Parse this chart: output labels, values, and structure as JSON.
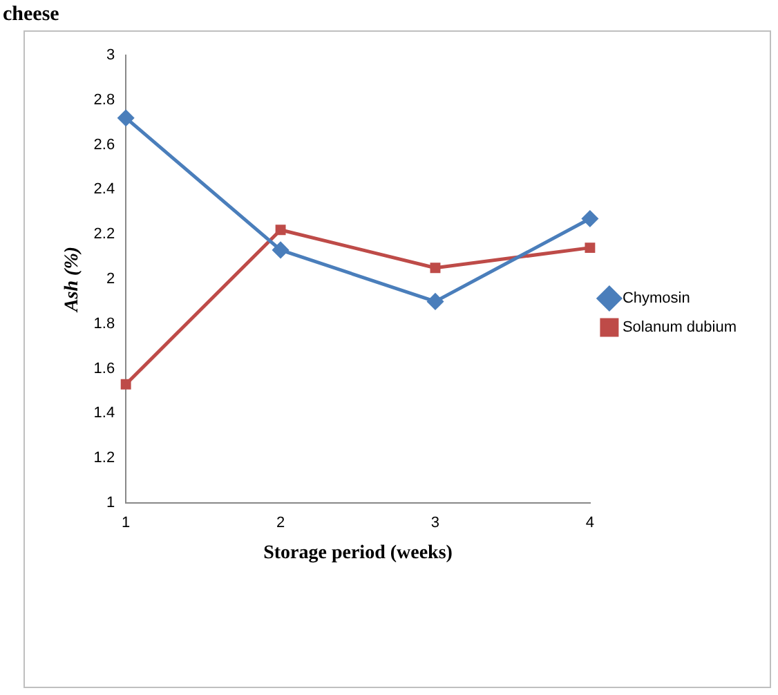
{
  "chart_data": {
    "type": "line",
    "xlabel": "Storage period (weeks)",
    "ylabel": "Ash (%)",
    "annotations": [
      "cheese"
    ],
    "categories": [
      "1",
      "2",
      "3",
      "4"
    ],
    "series": [
      {
        "name": "Chymosin",
        "color": "#4a7ebb",
        "marker": "diamond",
        "values": [
          2.72,
          2.13,
          1.9,
          2.27
        ]
      },
      {
        "name": "Solanum dubium",
        "color": "#be4b48",
        "marker": "square",
        "values": [
          1.53,
          2.22,
          2.05,
          2.14
        ]
      }
    ],
    "ylim": [
      1,
      3
    ],
    "yticks": [
      1,
      1.2,
      1.4,
      1.6,
      1.8,
      2,
      2.2,
      2.4,
      2.6,
      2.8,
      3
    ],
    "grid": false,
    "legend": "right"
  }
}
